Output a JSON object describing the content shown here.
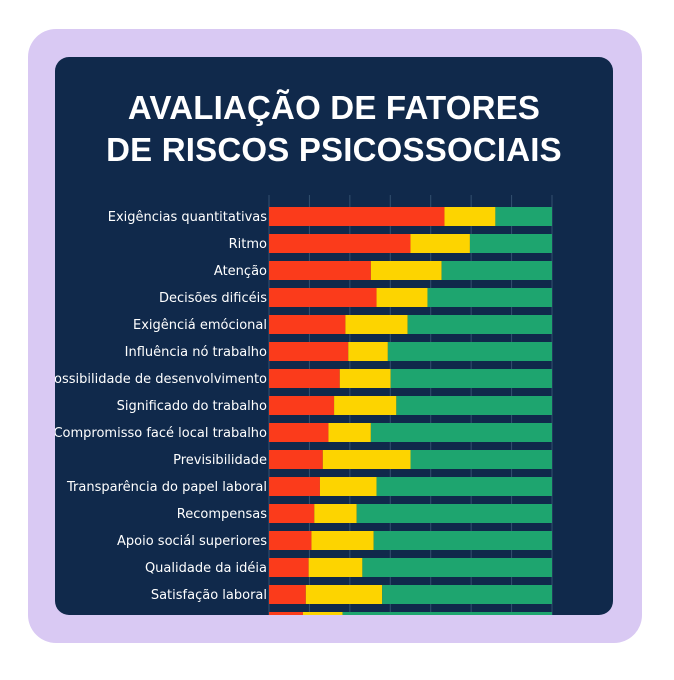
{
  "title": {
    "line1": "AVALIAÇÃO DE FATORES",
    "line2": "DE RISCOS PSICOSSOCIAIS"
  },
  "colors": {
    "frame": "#d9c9f3",
    "card": "#10294b",
    "grid": "#33506f",
    "red": "#fb3b1b",
    "yellow": "#fdd400",
    "green": "#1ea56f"
  },
  "chart_data": {
    "type": "bar",
    "orientation": "horizontal",
    "stacked": true,
    "xlim": [
      0,
      100
    ],
    "grid": true,
    "categories": [
      "Exigências quantitativas",
      "Ritmo",
      "Atenção",
      "Decisões dificéis",
      "Exigênciá emócional",
      "Influência nó trabalho",
      "Possibilidade de desenvolvimento",
      "Significado do trabalho",
      "Compromisso facé local trabalho",
      "Previsibilidade",
      "Transparência do papel laboral",
      "Recompensas",
      "Apoio sociál superiores",
      "Qualidade da idéia",
      "Satisfação laboral",
      ""
    ],
    "series": [
      {
        "color": "#fb3b1b",
        "values": [
          62,
          50,
          36,
          38,
          27,
          28,
          25,
          23,
          21,
          19,
          18,
          16,
          15,
          14,
          13,
          12
        ]
      },
      {
        "color": "#fdd400",
        "values": [
          18,
          21,
          25,
          18,
          22,
          14,
          18,
          22,
          15,
          31,
          20,
          15,
          22,
          19,
          27,
          14
        ]
      },
      {
        "color": "#1ea56f",
        "values": [
          20,
          29,
          39,
          44,
          51,
          58,
          57,
          55,
          64,
          50,
          62,
          69,
          63,
          67,
          60,
          74
        ]
      }
    ]
  }
}
